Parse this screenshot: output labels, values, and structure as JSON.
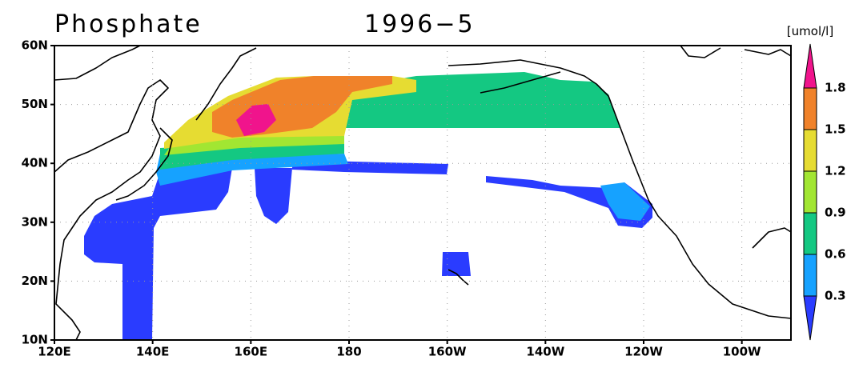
{
  "title": "Phosphate",
  "period": "1996−5",
  "colorbar": {
    "unit": "[umol/l]",
    "levels": [
      0.3,
      0.6,
      0.9,
      1.2,
      1.5,
      1.8
    ],
    "colors": [
      "#2a3cff",
      "#16a2ff",
      "#14c882",
      "#a2e632",
      "#e6dc32",
      "#f0822a",
      "#f0148c"
    ]
  },
  "lat_ticks": [
    {
      "value": 10,
      "label": "10N"
    },
    {
      "value": 20,
      "label": "20N"
    },
    {
      "value": 30,
      "label": "30N"
    },
    {
      "value": 40,
      "label": "40N"
    },
    {
      "value": 50,
      "label": "50N"
    },
    {
      "value": 60,
      "label": "60N"
    }
  ],
  "lon_ticks": [
    {
      "value": 120,
      "label": "120E"
    },
    {
      "value": 140,
      "label": "140E"
    },
    {
      "value": 160,
      "label": "160E"
    },
    {
      "value": 180,
      "label": "180"
    },
    {
      "value": 200,
      "label": "160W"
    },
    {
      "value": 220,
      "label": "140W"
    },
    {
      "value": 240,
      "label": "120W"
    },
    {
      "value": 260,
      "label": "100W"
    }
  ],
  "lat_range": [
    10,
    60
  ],
  "lon_range": [
    120,
    270
  ]
}
